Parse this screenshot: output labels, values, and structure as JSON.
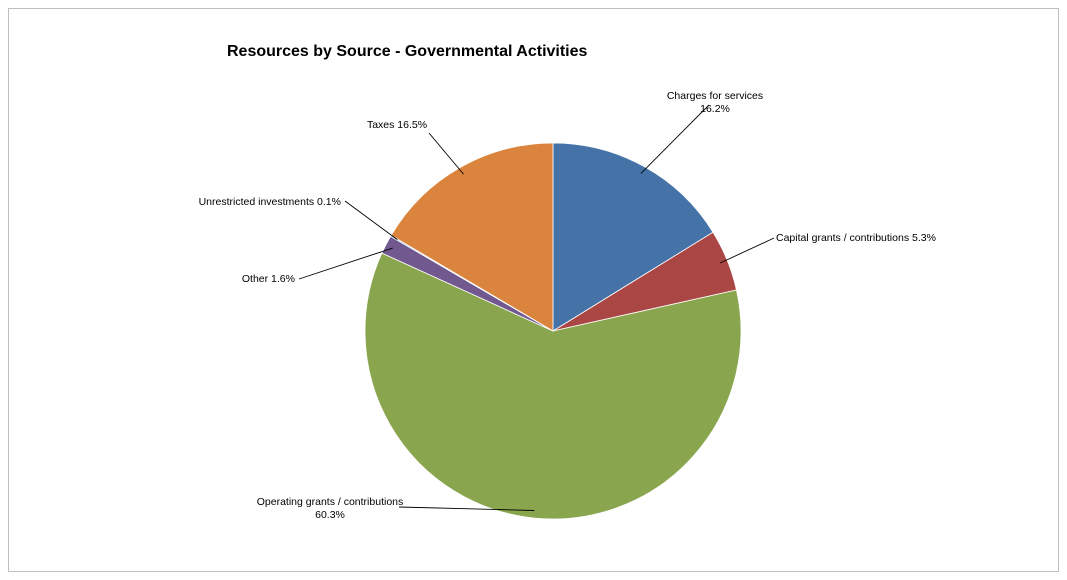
{
  "chart_data": {
    "type": "pie",
    "title": "Resources by Source - Governmental Activities",
    "slices": [
      {
        "name": "Charges for services",
        "value": 16.2,
        "label_lines": [
          "Charges for services",
          "16.2%"
        ],
        "color": "#4572A7"
      },
      {
        "name": "Capital grants / contributions",
        "value": 5.3,
        "label_lines": [
          "Capital grants / contributions 5.3%"
        ],
        "color": "#AA4643"
      },
      {
        "name": "Operating grants / contributions",
        "value": 60.3,
        "label_lines": [
          "Operating grants / contributions",
          "60.3%"
        ],
        "color": "#89A54E"
      },
      {
        "name": "Other",
        "value": 1.6,
        "label_lines": [
          "Other 1.6%"
        ],
        "color": "#71588F"
      },
      {
        "name": "Unrestricted investments",
        "value": 0.1,
        "label_lines": [
          "Unrestricted investments 0.1%"
        ],
        "color": "#4198AF"
      },
      {
        "name": "Taxes",
        "value": 16.5,
        "label_lines": [
          "Taxes 16.5%"
        ],
        "color": "#DB843D"
      }
    ],
    "legend": "none",
    "start_angle": "12 o'clock",
    "direction": "clockwise"
  }
}
